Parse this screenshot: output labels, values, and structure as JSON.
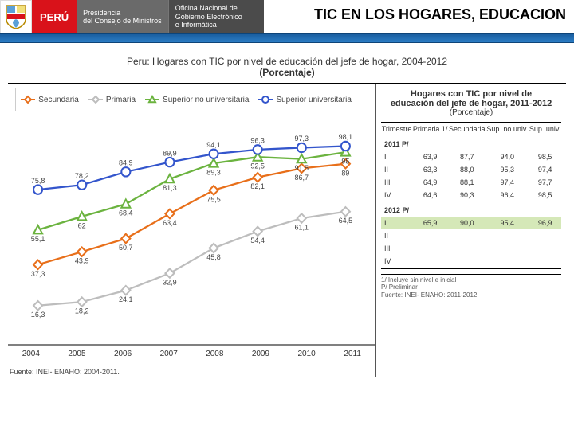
{
  "header": {
    "peru": "PERÚ",
    "pcm_line1": "Presidencia",
    "pcm_line2": "del Consejo de Ministros",
    "ongei_line1": "Oficina Nacional de",
    "ongei_line2": "Gobierno Electrónico",
    "ongei_line3": "e Informática",
    "page_title": "TIC EN LOS HOGARES, EDUCACION"
  },
  "chart": {
    "type": "line",
    "title_line1": "Peru: Hogares con TIC por nivel de educación del jefe de hogar, 2004-2012",
    "title_line2": "(Porcentaje)",
    "categories": [
      "2004",
      "2005",
      "2006",
      "2007",
      "2008",
      "2009",
      "2010",
      "2011"
    ],
    "ylim": [
      0,
      110
    ],
    "series": [
      {
        "name": "Secundaria",
        "color": "#e86f1a",
        "marker": "diamond",
        "values": [
          37.3,
          43.9,
          50.7,
          63.4,
          75.5,
          82.1,
          86.7,
          89.0
        ]
      },
      {
        "name": "Primaria",
        "color": "#bdbdbd",
        "marker": "diamond",
        "values": [
          16.3,
          18.2,
          24.1,
          32.9,
          45.8,
          54.4,
          61.1,
          64.5
        ]
      },
      {
        "name": "Superior no universitaria",
        "color": "#6bb33f",
        "marker": "triangle",
        "values": [
          55.1,
          62.0,
          68.4,
          81.3,
          89.3,
          92.5,
          91.5,
          95.0
        ]
      },
      {
        "name": "Superior universitaria",
        "color": "#3355cc",
        "marker": "circle",
        "values": [
          75.8,
          78.2,
          84.9,
          89.9,
          94.1,
          96.3,
          97.3,
          98.1
        ]
      }
    ],
    "line_width": 2.2,
    "marker_size": 5.5,
    "background_color": "#ffffff",
    "label_color": "#444444",
    "label_fontsize": 9,
    "fuente": "Fuente: INEI- ENAHO: 2004-2011."
  },
  "table": {
    "title_line1": "Hogares con TIC por nivel de",
    "title_line2": "educación del jefe de hogar, 2011-2012",
    "subtitle": "(Porcentaje)",
    "columns": [
      "Trimestre",
      "Primaria 1/",
      "Secundaria",
      "Sup. no univ.",
      "Sup. univ."
    ],
    "sections": [
      {
        "label": "2011 P/",
        "rows": [
          {
            "label": "I",
            "cells": [
              "63,9",
              "87,7",
              "94,0",
              "98,5"
            ]
          },
          {
            "label": "II",
            "cells": [
              "63,3",
              "88,0",
              "95,3",
              "97,4"
            ]
          },
          {
            "label": "III",
            "cells": [
              "64,9",
              "88,1",
              "97,4",
              "97,7"
            ]
          },
          {
            "label": "IV",
            "cells": [
              "64,6",
              "90,3",
              "96,4",
              "98,5"
            ]
          }
        ]
      },
      {
        "label": "2012 P/",
        "rows": [
          {
            "label": "I",
            "cells": [
              "65,9",
              "90,0",
              "95,4",
              "96,9"
            ],
            "highlight": true
          },
          {
            "label": "II",
            "cells": [
              "",
              "",
              "",
              ""
            ]
          },
          {
            "label": "III",
            "cells": [
              "",
              "",
              "",
              ""
            ]
          },
          {
            "label": "IV",
            "cells": [
              "",
              "",
              "",
              ""
            ]
          }
        ]
      }
    ],
    "footnote1": "1/ Incluye sin nivel e inicial",
    "footnote2": "P/ Preliminar",
    "fuente": "Fuente: INEI- ENAHO: 2011-2012."
  }
}
